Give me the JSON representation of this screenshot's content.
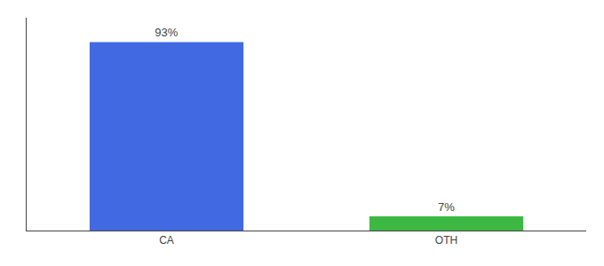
{
  "chart_data": {
    "type": "bar",
    "categories": [
      "CA",
      "OTH"
    ],
    "values": [
      93,
      7
    ],
    "value_labels": [
      "93%",
      "7%"
    ],
    "colors": [
      "#4169e1",
      "#3cb843"
    ],
    "ylim": [
      0,
      105
    ],
    "tick_labels": "x",
    "grid": false,
    "data_labels": true
  }
}
